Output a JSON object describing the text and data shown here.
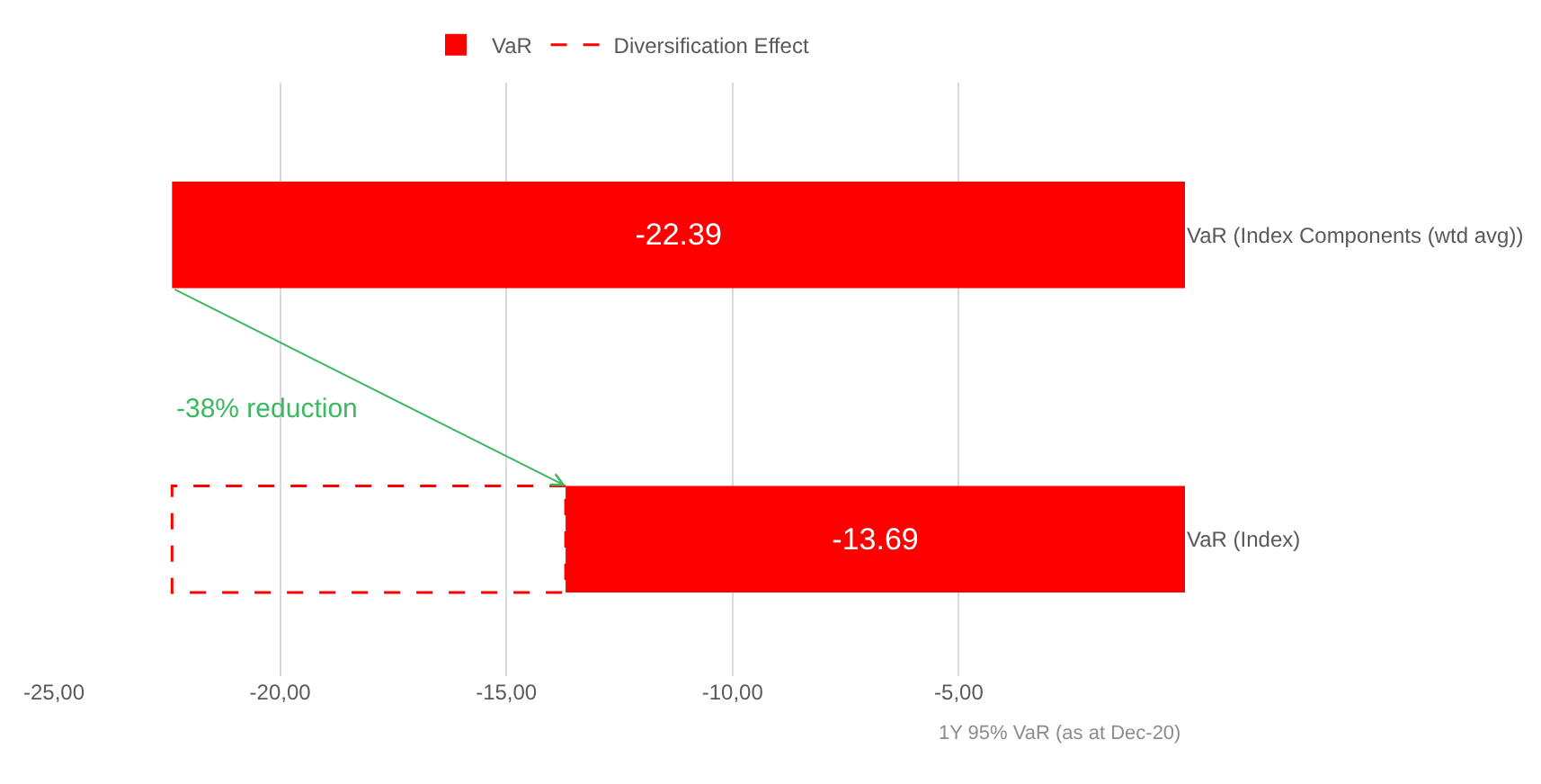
{
  "chart_data": {
    "type": "bar",
    "orientation": "horizontal",
    "categories": [
      "VaR (Index Components (wtd avg))",
      "VaR (Index)"
    ],
    "series": [
      {
        "name": "VaR",
        "color": "#ff0000",
        "values": [
          -22.39,
          -13.69
        ],
        "value_labels": [
          "-22.39",
          "-13.69"
        ]
      },
      {
        "name": "Diversification Effect",
        "color": "#ff0000",
        "values": [
          null,
          -8.7
        ],
        "base": [
          null,
          -13.69
        ],
        "line_style": "dashed"
      }
    ],
    "xlim": [
      -25,
      0
    ],
    "xticks": [
      {
        "value": -25,
        "label": "-25,00"
      },
      {
        "value": -20,
        "label": "-20,00"
      },
      {
        "value": -15,
        "label": "-15,00"
      },
      {
        "value": -10,
        "label": "-10,00"
      },
      {
        "value": -5,
        "label": "-5,00"
      }
    ],
    "grid": "x",
    "legend": "top",
    "annotations": [
      "-38% reduction",
      "1Y 95% VaR (as at Dec-20)"
    ]
  }
}
